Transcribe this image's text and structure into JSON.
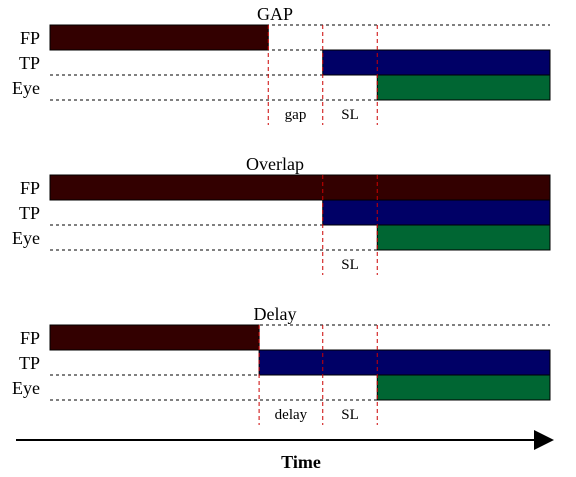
{
  "colors": {
    "fp": "#330000",
    "tp": "#000066",
    "eye": "#006633",
    "gridline": "#000000",
    "marker": "#cc0000"
  },
  "panels": [
    {
      "id": "gap",
      "title": "GAP",
      "rows": [
        {
          "label": "FP",
          "bar": [
            0,
            0.4365
          ]
        },
        {
          "label": "TP",
          "bar": [
            0.5455,
            1.0
          ]
        },
        {
          "label": "Eye",
          "bar": [
            0.6545,
            1.0
          ]
        }
      ],
      "markers": [
        0.4365,
        0.5455,
        0.6545
      ],
      "intervals": [
        {
          "label": "gap",
          "from": 0.4365,
          "to": 0.5455
        },
        {
          "label": "SL",
          "from": 0.5455,
          "to": 0.6545
        }
      ]
    },
    {
      "id": "overlap",
      "title": "Overlap",
      "rows": [
        {
          "label": "FP",
          "bar": [
            0,
            1.0
          ]
        },
        {
          "label": "TP",
          "bar": [
            0.5455,
            1.0
          ]
        },
        {
          "label": "Eye",
          "bar": [
            0.6545,
            1.0
          ]
        }
      ],
      "markers": [
        0.5455,
        0.6545
      ],
      "intervals": [
        {
          "label": "SL",
          "from": 0.5455,
          "to": 0.6545
        }
      ]
    },
    {
      "id": "delay",
      "title": "Delay",
      "rows": [
        {
          "label": "FP",
          "bar": [
            0,
            0.4182
          ]
        },
        {
          "label": "TP",
          "bar": [
            0.4182,
            1.0
          ]
        },
        {
          "label": "Eye",
          "bar": [
            0.6545,
            1.0
          ]
        }
      ],
      "markers": [
        0.4182,
        0.5455,
        0.6545
      ],
      "intervals": [
        {
          "label": "delay",
          "from": 0.4182,
          "to": 0.5455
        },
        {
          "label": "SL",
          "from": 0.5455,
          "to": 0.6545
        }
      ]
    }
  ],
  "axis": {
    "label": "Time"
  }
}
